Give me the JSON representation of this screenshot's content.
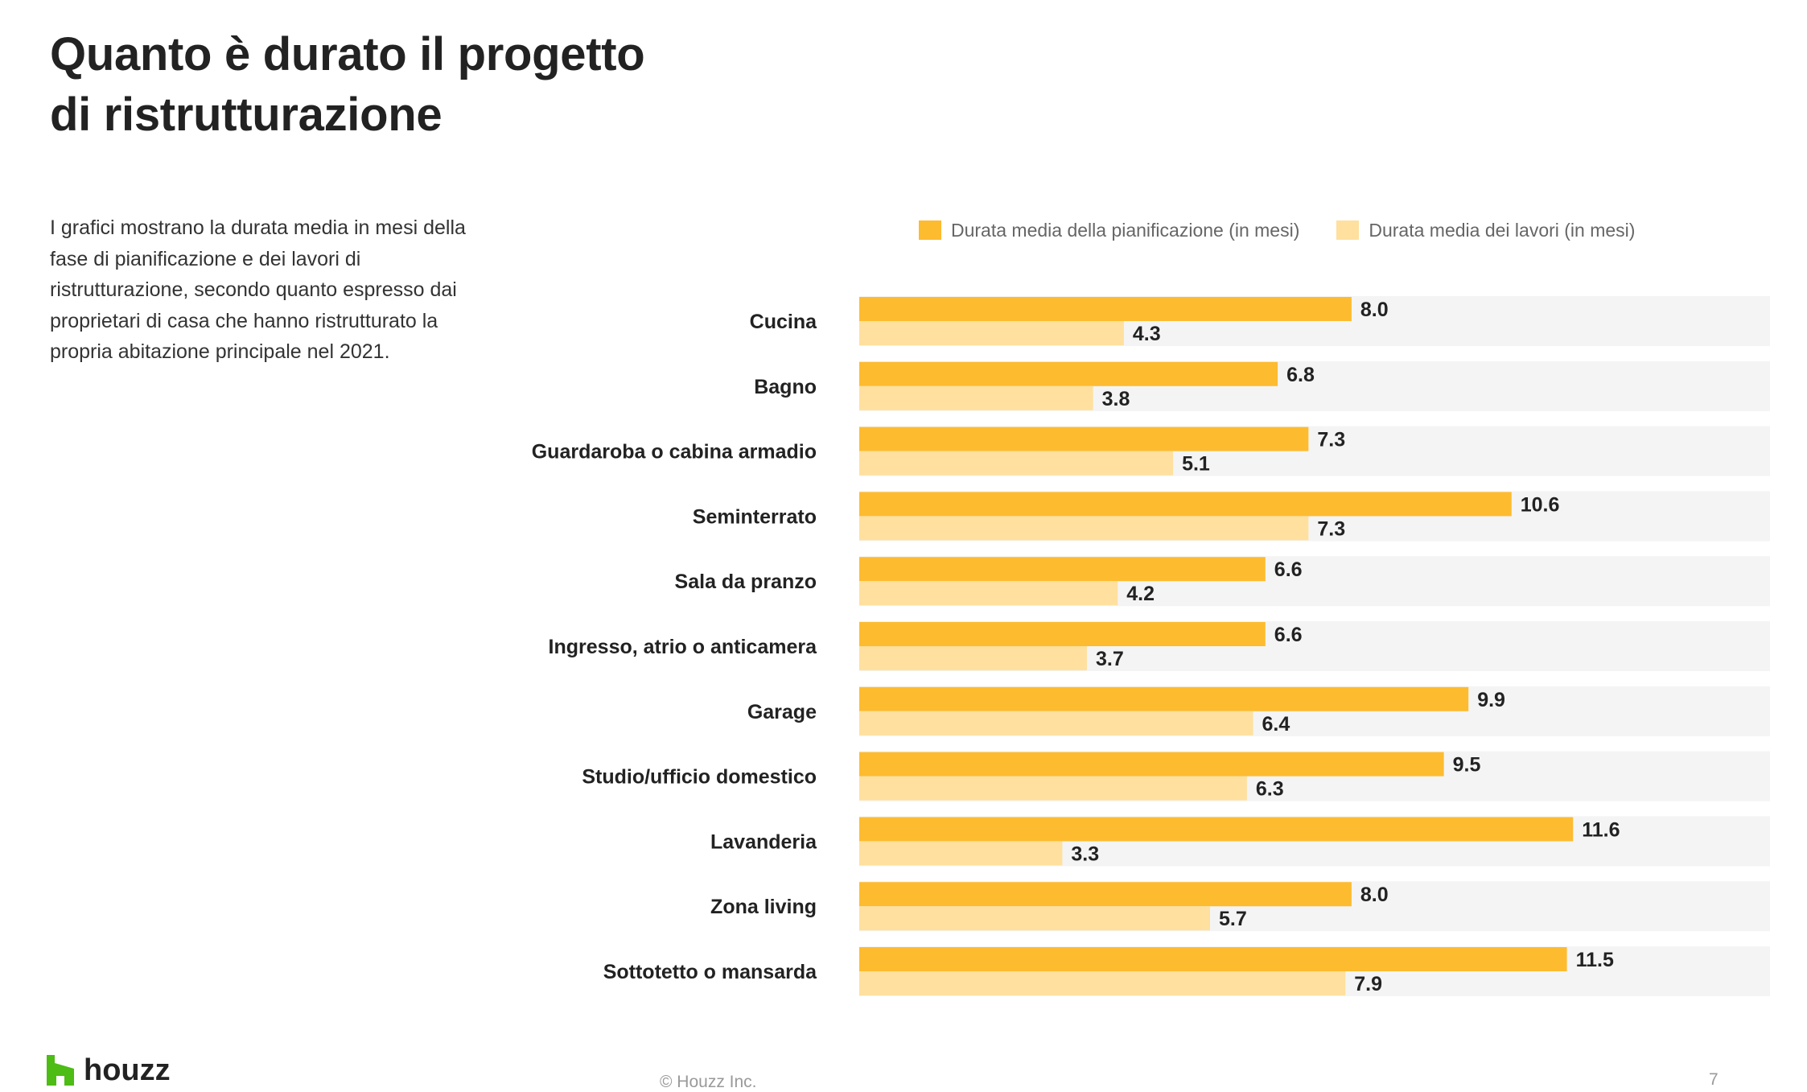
{
  "title": {
    "line1": "Quanto è durato il progetto",
    "line2": "di ristrutturazione"
  },
  "description": {
    "line1": "I grafici mostrano la durata media in mesi della",
    "line2": "fase di pianificazione e dei lavori di",
    "line3": "ristrutturazione, secondo quanto espresso dai",
    "line4": "proprietari di casa che hanno ristrutturato la",
    "line5": "propria abitazione principale nel 2021."
  },
  "legend": {
    "planning": "Durata media della pianificazione (in mesi)",
    "works": "Durata media dei lavori (in mesi)"
  },
  "colors": {
    "planning": "#FDBB30",
    "works": "#FFE09E",
    "row_background": "#F4F4F4",
    "logo_green": "#4DBC15"
  },
  "chart_data": {
    "type": "bar",
    "orientation": "horizontal",
    "categories": [
      "Cucina",
      "Bagno",
      "Guardaroba o cabina armadio",
      "Seminterrato",
      "Sala da pranzo",
      "Ingresso, atrio o anticamera",
      "Garage",
      "Studio/ufficio domestico",
      "Lavanderia",
      "Zona living",
      "Sottotetto o mansarda"
    ],
    "series": [
      {
        "name": "Durata media della pianificazione (in mesi)",
        "values": [
          8.0,
          6.8,
          7.3,
          10.6,
          6.6,
          6.6,
          9.9,
          9.5,
          11.6,
          8.0,
          11.5
        ],
        "labels": [
          "8.0",
          "6.8",
          "7.3",
          "10.6",
          "6.6",
          "6.6",
          "9.9",
          "9.5",
          "11.6",
          "8.0",
          "11.5"
        ]
      },
      {
        "name": "Durata media dei lavori (in mesi)",
        "values": [
          4.3,
          3.8,
          5.1,
          7.3,
          4.2,
          3.7,
          6.4,
          6.3,
          3.3,
          5.7,
          7.9
        ],
        "labels": [
          "4.3",
          "3.8",
          "5.1",
          "7.3",
          "4.2",
          "3.7",
          "6.4",
          "6.3",
          "3.3",
          "5.7",
          "7.9"
        ]
      }
    ],
    "xlim": [
      0,
      14.8
    ],
    "title": "Quanto è durato il progetto di ristrutturazione",
    "xlabel": "",
    "ylabel": "",
    "legend_position": "top"
  },
  "footer": {
    "logo_text": "houzz",
    "copyright": "© Houzz Inc.",
    "page_number": "7"
  }
}
